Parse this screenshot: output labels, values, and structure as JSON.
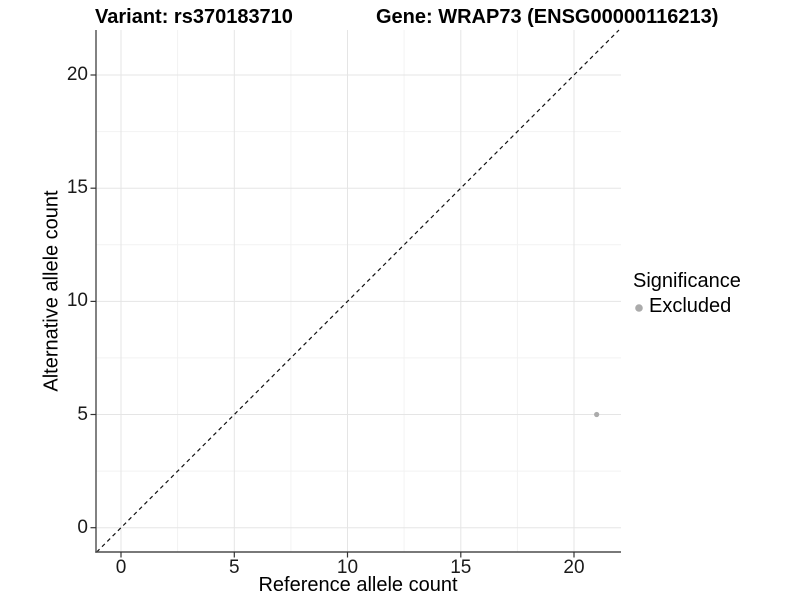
{
  "header": {
    "variant_title": "Variant: rs370183710",
    "gene_title": "Gene: WRAP73 (ENSG00000116213)"
  },
  "legend": {
    "title": "Significance",
    "items": [
      {
        "label": "Excluded",
        "color": "#ababab"
      }
    ]
  },
  "chart_data": {
    "type": "scatter",
    "title": "Variant: rs370183710 | Gene: WRAP73 (ENSG00000116213)",
    "xlabel": "Reference allele count",
    "ylabel": "Alternative allele count",
    "xlim": [
      -1.05,
      22.05
    ],
    "ylim": [
      -1.05,
      22.05
    ],
    "x_ticks": [
      0,
      5,
      10,
      15,
      20
    ],
    "y_ticks": [
      0,
      5,
      10,
      15,
      20
    ],
    "x_tick_labels": [
      "0",
      "5",
      "10",
      "15",
      "20"
    ],
    "y_tick_labels": [
      "0",
      "5",
      "10",
      "15",
      "20"
    ],
    "grid": "major and minor, light gray",
    "reference_line": {
      "type": "identity y=x",
      "style": "dashed",
      "color": "#111111"
    },
    "legend_position": "right",
    "series": [
      {
        "name": "Excluded",
        "color": "#ababab",
        "points": [
          {
            "x": 21,
            "y": 5
          }
        ]
      }
    ]
  },
  "colors": {
    "major_grid": "#e5e5e5",
    "minor_grid": "#f2f2f2",
    "axis_line": "#4d4d4d",
    "point": "#ababab"
  }
}
